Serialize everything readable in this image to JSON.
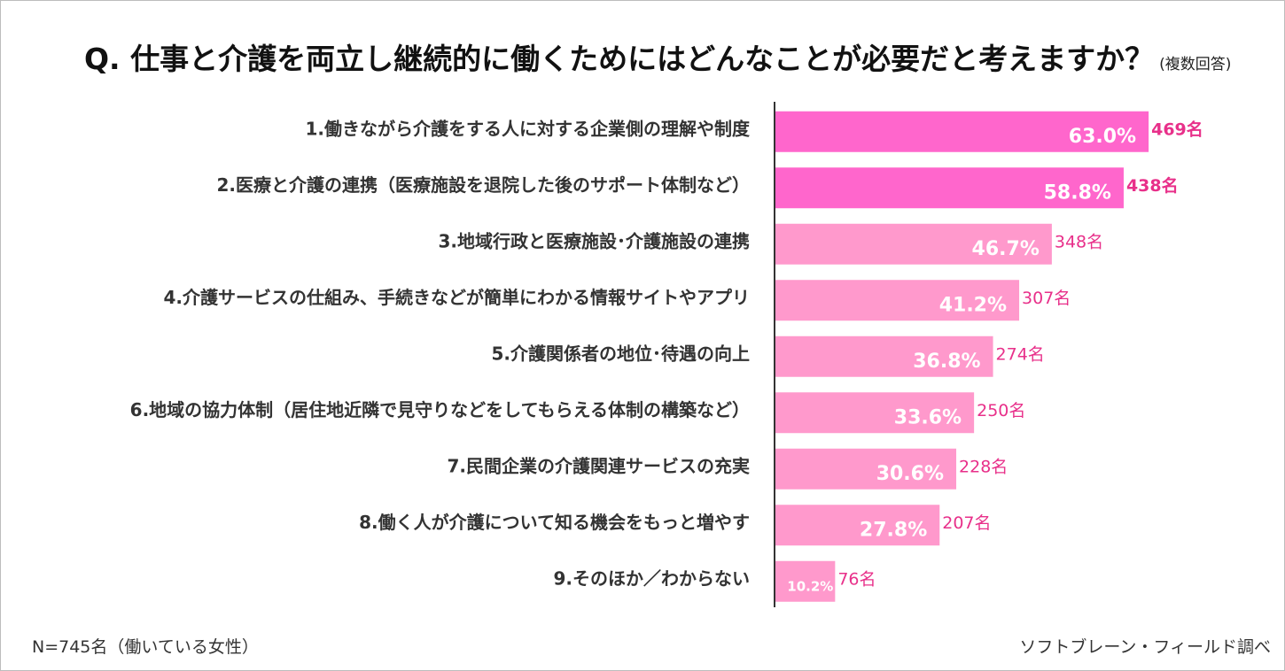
{
  "title": {
    "main": "Q.  仕事と介護を両立し継続的に働くためにはどんなことが必要だと考えますか？",
    "sub": "(複数回答)"
  },
  "footer": {
    "sample": "N=745名（働いている女性）",
    "source": "ソフトブレーン・フィールド調べ"
  },
  "colors": {
    "highlight": "#ff66cc",
    "normal": "#ff99cc",
    "pct_text": "#ffffff",
    "count_text": "#e8308a",
    "axis": "#333333"
  },
  "chart_data": {
    "type": "bar",
    "orientation": "horizontal",
    "categories": [
      "1.働きながら介護をする人に対する企業側の理解や制度",
      "2.医療と介護の連携（医療施設を退院した後のサポート体制など）",
      "3.地域行政と医療施設･介護施設の連携",
      "4.介護サービスの仕組み、手続きなどが簡単にわかる情報サイトやアプリ",
      "5.介護関係者の地位･待遇の向上",
      "6.地域の協力体制（居住地近隣で見守りなどをしてもらえる体制の構築など）",
      "7.民間企業の介護関連サービスの充実",
      "8.働く人が介護について知る機会をもっと増やす",
      "9.そのほか／わからない"
    ],
    "values": [
      63.0,
      58.8,
      46.7,
      41.2,
      36.8,
      33.6,
      30.6,
      27.8,
      10.2
    ],
    "value_labels": [
      "63.0%",
      "58.8%",
      "46.7%",
      "41.2%",
      "36.8%",
      "33.6%",
      "30.6%",
      "27.8%",
      "10.2%"
    ],
    "counts": [
      "469名",
      "438名",
      "348名",
      "307名",
      "274名",
      "250名",
      "228名",
      "207名",
      "76名"
    ],
    "highlighted": [
      true,
      true,
      false,
      false,
      false,
      false,
      false,
      false,
      false
    ],
    "unit": "%",
    "xlim": [
      0,
      100
    ]
  }
}
